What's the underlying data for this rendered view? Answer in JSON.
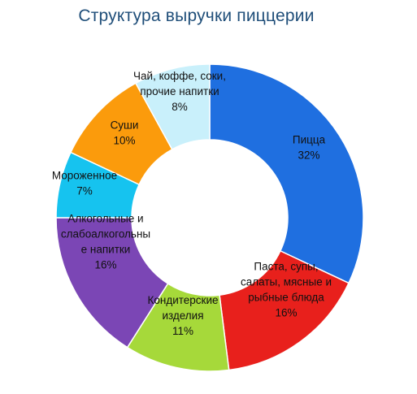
{
  "chart_data": {
    "type": "pie",
    "variant": "donut",
    "title": "Структура выручки пиццерии",
    "categories": [
      "Пицца",
      "Паста, супы, салаты, мясные и рыбные блюда",
      "Кондитерские изделия",
      "Алкогольные и слабоалкогольные напитки",
      "Мороженное",
      "Суши",
      "Чай, коффе, соки, прочие напитки"
    ],
    "values": [
      32,
      16,
      11,
      16,
      7,
      10,
      8
    ],
    "value_labels": [
      "32%",
      "16%",
      "11%",
      "16%",
      "7%",
      "10%",
      "8%"
    ],
    "slice_label_lines": [
      [
        "Пицца"
      ],
      [
        "Паста, супы,",
        "салаты,  мясные  и",
        "рыбные  блюда"
      ],
      [
        "Кондитерские",
        "изделия"
      ],
      [
        "Алкогольные и",
        "слабоалкогольны",
        "е   напитки"
      ],
      [
        "Мороженное"
      ],
      [
        "Суши"
      ],
      [
        "Чай, коффе, соки,",
        "прочие напитки"
      ]
    ],
    "colors": [
      "#1f6fe0",
      "#e8201c",
      "#a6d93a",
      "#7b46b5",
      "#16c3ef",
      "#fb9b0c",
      "#c9f0fb"
    ],
    "start_angle_deg": 0,
    "direction": "clockwise",
    "legend": "none"
  }
}
